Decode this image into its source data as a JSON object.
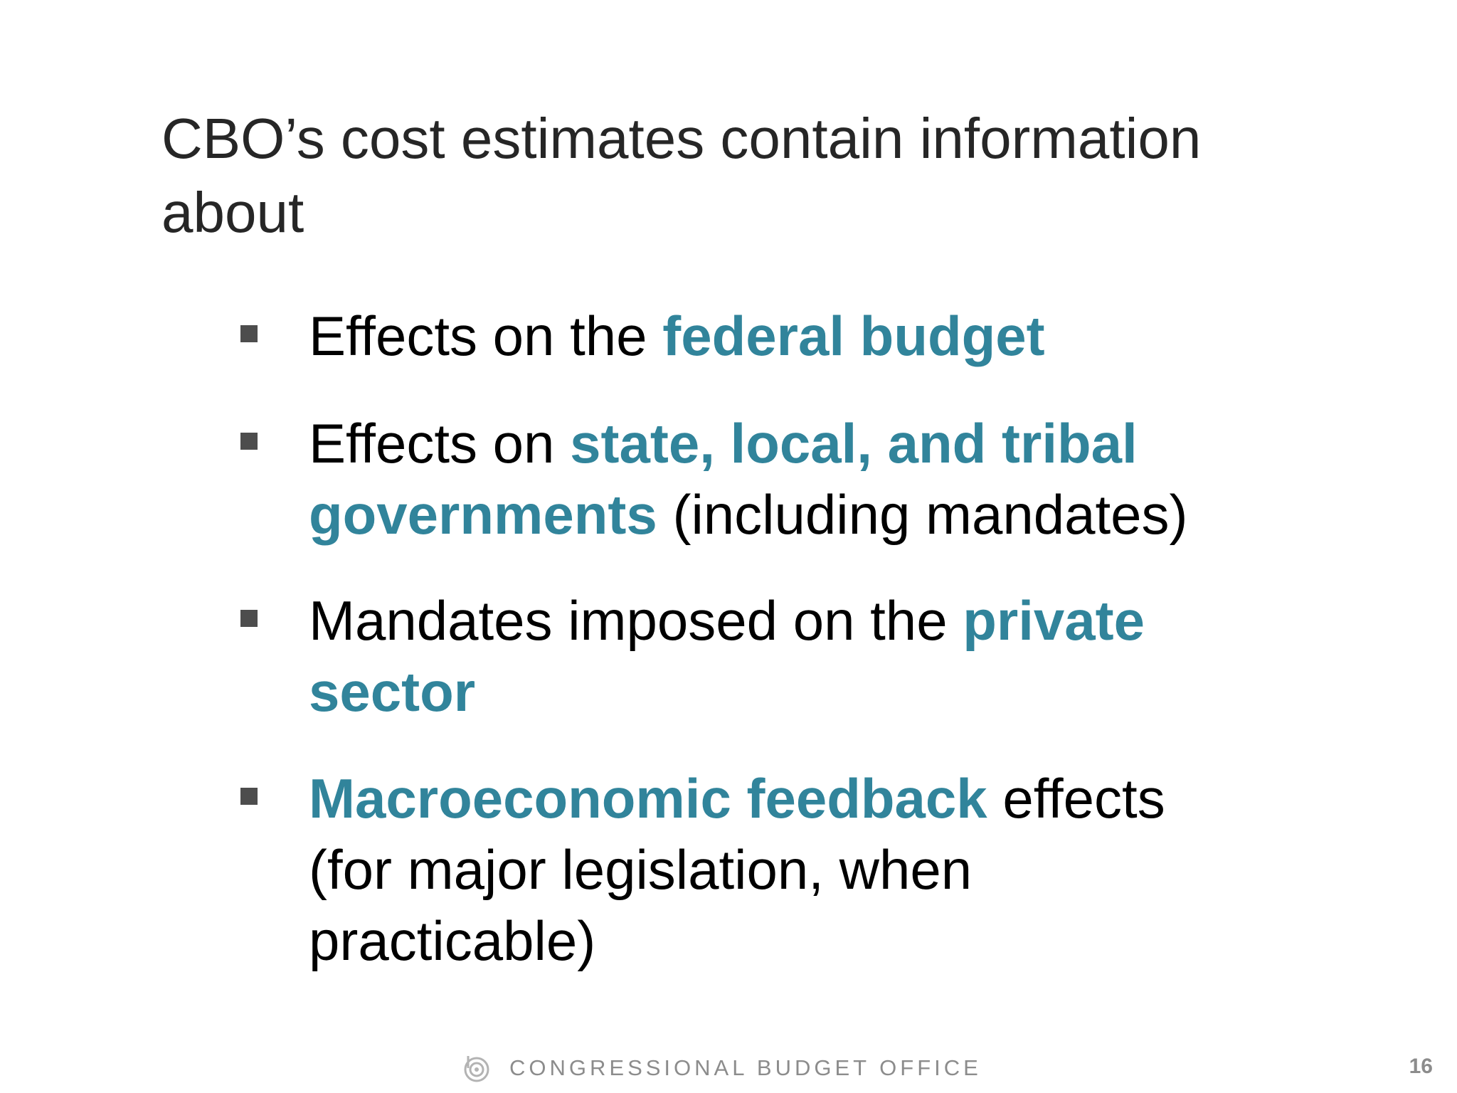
{
  "slide": {
    "title": "CBO’s cost estimates contain information about",
    "bullets": [
      {
        "parts": [
          {
            "text": "Effects on the "
          },
          {
            "text": "federal budget"
          }
        ]
      },
      {
        "parts": [
          {
            "text": "Effects on "
          },
          {
            "text": "state, local, and tribal governments"
          },
          {
            "text": " (including mandates)"
          }
        ]
      },
      {
        "parts": [
          {
            "text": "Mandates imposed on the "
          },
          {
            "text": "private sector"
          }
        ]
      },
      {
        "parts": [
          {
            "text": "Macroeconomic feedback"
          },
          {
            "text": " effects (for major legislation, when practicable)"
          }
        ]
      }
    ],
    "highlight_color": "#31849b",
    "bullet_marker_icon": "square-bullet-icon"
  },
  "footer": {
    "logo_icon": "cbo-logo-icon",
    "organization": "CONGRESSIONAL BUDGET OFFICE",
    "page_number": "16"
  }
}
